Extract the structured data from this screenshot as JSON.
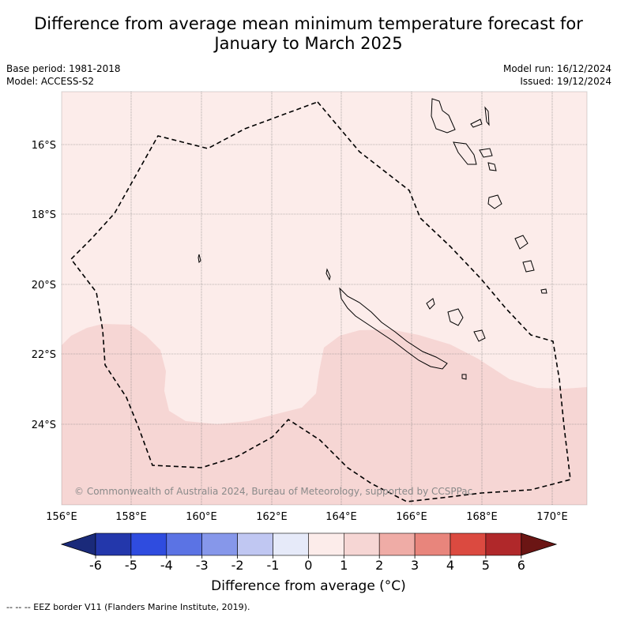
{
  "title_line1": "Difference from average mean minimum temperature forecast for",
  "title_line2": "January to March 2025",
  "meta": {
    "base_period": "Base period: 1981-2018",
    "model": "Model: ACCESS-S2",
    "model_run": "Model run: 16/12/2024",
    "issued": "Issued: 19/12/2024"
  },
  "map": {
    "lat_labels": [
      "16°S",
      "18°S",
      "20°S",
      "22°S",
      "24°S"
    ],
    "lon_labels": [
      "156°E",
      "158°E",
      "160°E",
      "162°E",
      "164°E",
      "166°E",
      "168°E",
      "170°E"
    ],
    "copyright": "© Commonwealth of Australia 2024, Bureau of Meteorology, supported by CCSPPac",
    "colors": {
      "zero_to_one": "#fcecea",
      "one_to_two": "#f6d6d4",
      "land_outline": "#000000"
    }
  },
  "colorbar": {
    "ticks": [
      "-6",
      "-5",
      "-4",
      "-3",
      "-2",
      "-1",
      "0",
      "1",
      "2",
      "3",
      "4",
      "5",
      "6"
    ],
    "colors": [
      "#1a2a7a",
      "#2337ab",
      "#2f4cdf",
      "#5b73e4",
      "#8697ea",
      "#c0c7f2",
      "#e6eaf9",
      "#fcecea",
      "#f6d6d4",
      "#efaca6",
      "#e8857c",
      "#db4a40",
      "#b0282a",
      "#6b1514"
    ],
    "label": "Difference from average (°C)"
  },
  "footer": "--  --  -- EEZ border V11 (Flanders Marine Institute, 2019)."
}
